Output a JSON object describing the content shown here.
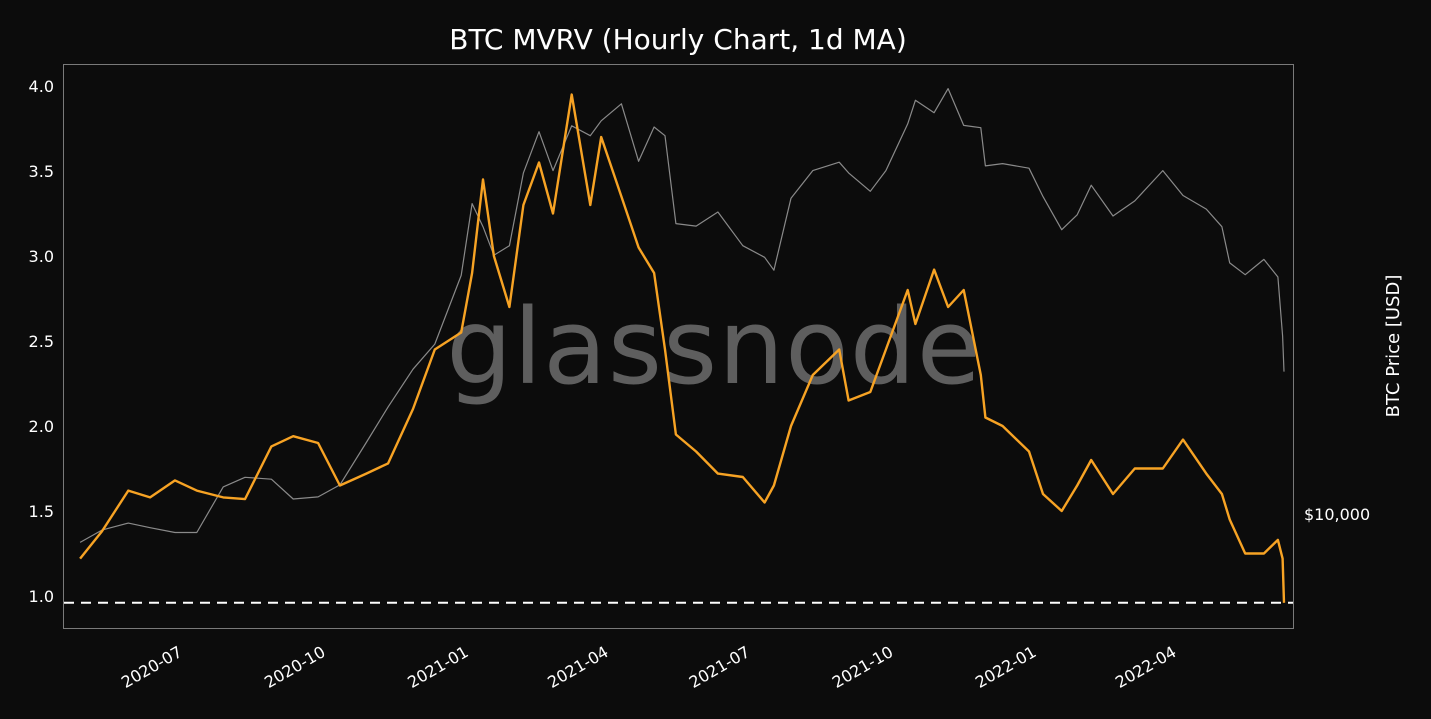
{
  "chart_data": {
    "type": "line",
    "title": "BTC MVRV (Hourly Chart, 1d MA)",
    "watermark": "glassnode",
    "xlabel": "",
    "ylabel": "",
    "ylabel_right": "BTC Price [USD]",
    "ylim": [
      0.82,
      4.13
    ],
    "yticks": [
      1.0,
      1.5,
      2.0,
      2.5,
      3.0,
      3.5,
      4.0
    ],
    "ytick_labels": [
      "1.0",
      "1.5",
      "2.0",
      "2.5",
      "3.0",
      "3.5",
      "4.0"
    ],
    "y2_scale": "log",
    "y2_ticks": [
      10000
    ],
    "y2_tick_labels": [
      "$10,000"
    ],
    "xticks": [
      "2020-07",
      "2020-10",
      "2021-01",
      "2021-04",
      "2021-07",
      "2021-10",
      "2022-01",
      "2022-04"
    ],
    "x_range": [
      "2020-05-01",
      "2022-06-19"
    ],
    "grid": false,
    "legend": null,
    "reference_line": {
      "y": 0.96,
      "style": "dashed",
      "color": "#ffffff"
    },
    "colors": {
      "background": "#0c0c0c",
      "mvrv": "#f7a324",
      "price": "#8a8a8a",
      "axes": "#7a7a7a",
      "text": "#ffffff",
      "watermark": "#5e5e5e"
    },
    "x": [
      "2020-05-01",
      "2020-05-15",
      "2020-06-01",
      "2020-06-15",
      "2020-07-01",
      "2020-07-15",
      "2020-08-01",
      "2020-08-15",
      "2020-09-01",
      "2020-09-15",
      "2020-10-01",
      "2020-10-15",
      "2020-11-01",
      "2020-11-15",
      "2020-12-01",
      "2020-12-15",
      "2021-01-01",
      "2021-01-08",
      "2021-01-15",
      "2021-01-22",
      "2021-02-01",
      "2021-02-10",
      "2021-02-20",
      "2021-03-01",
      "2021-03-13",
      "2021-03-25",
      "2021-04-01",
      "2021-04-14",
      "2021-04-25",
      "2021-05-05",
      "2021-05-12",
      "2021-05-19",
      "2021-06-01",
      "2021-06-15",
      "2021-07-01",
      "2021-07-15",
      "2021-07-21",
      "2021-08-01",
      "2021-08-15",
      "2021-09-01",
      "2021-09-07",
      "2021-09-21",
      "2021-10-01",
      "2021-10-15",
      "2021-10-20",
      "2021-11-01",
      "2021-11-10",
      "2021-11-20",
      "2021-12-01",
      "2021-12-04",
      "2021-12-15",
      "2022-01-01",
      "2022-01-10",
      "2022-01-22",
      "2022-02-01",
      "2022-02-10",
      "2022-02-24",
      "2022-03-10",
      "2022-03-28",
      "2022-04-10",
      "2022-04-25",
      "2022-05-05",
      "2022-05-10",
      "2022-05-20",
      "2022-06-01",
      "2022-06-10",
      "2022-06-13",
      "2022-06-18"
    ],
    "series": [
      {
        "name": "MVRV",
        "axis": "left",
        "color": "#f7a324",
        "values": [
          1.22,
          1.38,
          1.62,
          1.58,
          1.68,
          1.62,
          1.58,
          1.57,
          1.88,
          1.94,
          1.9,
          1.65,
          1.72,
          1.78,
          2.1,
          2.45,
          2.55,
          2.9,
          3.45,
          3.0,
          2.7,
          3.3,
          3.55,
          3.25,
          3.95,
          3.3,
          3.7,
          3.35,
          3.05,
          2.9,
          2.45,
          1.95,
          1.85,
          1.72,
          1.7,
          1.55,
          1.65,
          2.0,
          2.3,
          2.45,
          2.15,
          2.2,
          2.45,
          2.8,
          2.6,
          2.92,
          2.7,
          2.8,
          2.3,
          2.05,
          2.0,
          1.85,
          1.6,
          1.5,
          1.65,
          1.8,
          1.6,
          1.75,
          1.75,
          1.92,
          1.72,
          1.6,
          1.45,
          1.25,
          1.25,
          1.33,
          1.22,
          0.96
        ]
      },
      {
        "name": "BTC Price [USD]",
        "axis": "right",
        "color": "#8a8a8a",
        "values": [
          8800,
          9300,
          9600,
          9400,
          9200,
          9200,
          11300,
          11800,
          11700,
          10700,
          10800,
          11400,
          13800,
          16200,
          19200,
          21500,
          29300,
          40500,
          36500,
          32100,
          33500,
          46500,
          56000,
          47000,
          57500,
          55000,
          58800,
          63500,
          49000,
          57200,
          55000,
          37000,
          36600,
          39000,
          33500,
          31800,
          30000,
          41500,
          47000,
          48800,
          46500,
          42800,
          47000,
          58000,
          64500,
          61000,
          68000,
          57600,
          57000,
          48000,
          48500,
          47500,
          41800,
          36000,
          38500,
          44000,
          38300,
          41000,
          47000,
          42000,
          39500,
          36500,
          31000,
          29400,
          31500,
          29100,
          22300,
          19000
        ]
      }
    ]
  }
}
